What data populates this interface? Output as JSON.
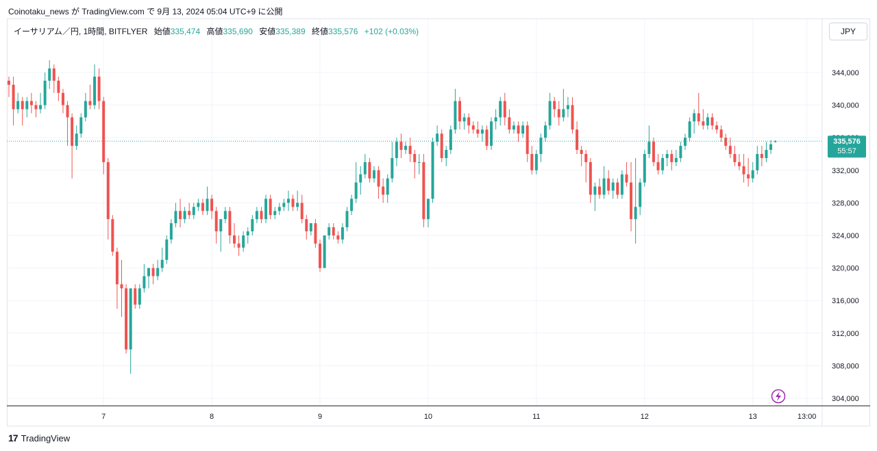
{
  "header": {
    "published_caption": "Coinotaku_news が TradingView.com で 9月 13, 2024 05:04 UTC+9 に公開"
  },
  "legend": {
    "symbol": "イーサリアム／円, 1時間, BITFLYER",
    "open_label": "始値",
    "open_value": "335,474",
    "high_label": "高値",
    "high_value": "335,690",
    "low_label": "安値",
    "low_value": "335,389",
    "close_label": "終値",
    "close_value": "335,576",
    "change": "+102 (+0.03%)"
  },
  "currency_button": "JPY",
  "price_badge": {
    "price": "335,576",
    "countdown": "55:57"
  },
  "footer": {
    "brand": "TradingView",
    "logo": "17"
  },
  "colors": {
    "up": "#26a69a",
    "down": "#ef5350",
    "grid": "#f0f3fa",
    "axis_text": "#131722",
    "badge": "#26a69a",
    "lightning": "#9c27b0"
  },
  "chart_data": {
    "type": "candlestick",
    "interval": "1時間",
    "currency": "JPY",
    "y_ticks": [
      304000,
      308000,
      312000,
      316000,
      320000,
      324000,
      328000,
      332000,
      336000,
      340000,
      344000
    ],
    "y_tick_labels": [
      "304,000",
      "308,000",
      "312,000",
      "316,000",
      "320,000",
      "324,000",
      "328,000",
      "332,000",
      "336,000",
      "340,000",
      "344,000"
    ],
    "ylim": [
      303000,
      348000
    ],
    "x_tick_labels": [
      "7",
      "8",
      "9",
      "10",
      "11",
      "12",
      "13",
      "13:00"
    ],
    "x_tick_index": [
      21,
      45,
      69,
      93,
      117,
      141,
      165,
      177
    ],
    "last_price": 335576,
    "candles": [
      [
        343000,
        343500,
        341000,
        342500
      ],
      [
        342500,
        343500,
        337500,
        339500
      ],
      [
        339500,
        341500,
        339000,
        340500
      ],
      [
        340500,
        341000,
        337500,
        339500
      ],
      [
        339500,
        341000,
        338500,
        340500
      ],
      [
        340500,
        341500,
        339000,
        340000
      ],
      [
        340000,
        340500,
        338500,
        339500
      ],
      [
        339500,
        341500,
        339000,
        340000
      ],
      [
        340000,
        344000,
        339500,
        343000
      ],
      [
        343000,
        345500,
        342000,
        344500
      ],
      [
        344500,
        345000,
        341500,
        343000
      ],
      [
        343000,
        343500,
        340500,
        341500
      ],
      [
        341500,
        342000,
        339000,
        340000
      ],
      [
        340000,
        340500,
        335000,
        338500
      ],
      [
        338500,
        339000,
        331000,
        335000
      ],
      [
        335000,
        337500,
        334500,
        336500
      ],
      [
        336500,
        339000,
        336000,
        338500
      ],
      [
        338500,
        341500,
        338000,
        340500
      ],
      [
        340500,
        342500,
        339500,
        340000
      ],
      [
        340000,
        345000,
        339500,
        343500
      ],
      [
        343500,
        344500,
        339500,
        340500
      ],
      [
        340500,
        341000,
        331500,
        333000
      ],
      [
        333000,
        333500,
        323500,
        326000
      ],
      [
        326000,
        326500,
        321500,
        322000
      ],
      [
        322000,
        322500,
        315000,
        318000
      ],
      [
        318000,
        321000,
        314000,
        317500
      ],
      [
        317500,
        318000,
        309500,
        310000
      ],
      [
        310000,
        317500,
        307000,
        317500
      ],
      [
        317500,
        318000,
        315000,
        315500
      ],
      [
        315500,
        318000,
        315000,
        317500
      ],
      [
        317500,
        320500,
        317000,
        319000
      ],
      [
        319000,
        320000,
        317500,
        320000
      ],
      [
        320000,
        320500,
        318000,
        319000
      ],
      [
        319000,
        321000,
        318500,
        320000
      ],
      [
        320000,
        322500,
        319500,
        321000
      ],
      [
        321000,
        324000,
        320500,
        323500
      ],
      [
        323500,
        326000,
        323000,
        325500
      ],
      [
        325500,
        328000,
        325000,
        327000
      ],
      [
        327000,
        328500,
        325000,
        326000
      ],
      [
        326000,
        327500,
        325500,
        327000
      ],
      [
        327000,
        328000,
        326000,
        326500
      ],
      [
        326500,
        328000,
        326000,
        327500
      ],
      [
        327500,
        328500,
        327000,
        328000
      ],
      [
        328000,
        328500,
        326500,
        327000
      ],
      [
        327000,
        330000,
        326500,
        328500
      ],
      [
        328500,
        329000,
        326000,
        327000
      ],
      [
        327000,
        327500,
        323000,
        324500
      ],
      [
        324500,
        326000,
        322000,
        326000
      ],
      [
        326000,
        327500,
        325500,
        327000
      ],
      [
        327000,
        327500,
        323000,
        324000
      ],
      [
        324000,
        325500,
        322500,
        323000
      ],
      [
        323000,
        324000,
        321500,
        322500
      ],
      [
        322500,
        324500,
        322000,
        324000
      ],
      [
        324000,
        325000,
        323000,
        324500
      ],
      [
        324500,
        326500,
        324000,
        326000
      ],
      [
        326000,
        327500,
        325500,
        327000
      ],
      [
        327000,
        327500,
        325500,
        326000
      ],
      [
        326000,
        329000,
        325500,
        328500
      ],
      [
        328500,
        329000,
        326000,
        326500
      ],
      [
        326500,
        327500,
        326000,
        327000
      ],
      [
        327000,
        328000,
        326500,
        327500
      ],
      [
        327500,
        328500,
        327000,
        328000
      ],
      [
        328000,
        329500,
        327000,
        328500
      ],
      [
        328500,
        329000,
        327000,
        327500
      ],
      [
        327500,
        329500,
        327000,
        328000
      ],
      [
        328000,
        329000,
        325500,
        326000
      ],
      [
        326000,
        326500,
        323500,
        324500
      ],
      [
        324500,
        325500,
        324000,
        325500
      ],
      [
        325500,
        326000,
        322500,
        323000
      ],
      [
        323000,
        323500,
        319500,
        320000
      ],
      [
        320000,
        324000,
        320000,
        324000
      ],
      [
        324000,
        325500,
        323500,
        325000
      ],
      [
        325000,
        325500,
        323500,
        324000
      ],
      [
        324000,
        324500,
        323000,
        323500
      ],
      [
        323500,
        325500,
        323000,
        325000
      ],
      [
        325000,
        327500,
        324500,
        327000
      ],
      [
        327000,
        329000,
        326500,
        328500
      ],
      [
        328500,
        333000,
        328000,
        330500
      ],
      [
        330500,
        332500,
        329000,
        331500
      ],
      [
        331500,
        334000,
        331000,
        333000
      ],
      [
        333000,
        333500,
        330500,
        331000
      ],
      [
        331000,
        332500,
        330500,
        332000
      ],
      [
        332000,
        332500,
        328500,
        330000
      ],
      [
        330000,
        331000,
        328000,
        329000
      ],
      [
        329000,
        331500,
        328000,
        331000
      ],
      [
        331000,
        335500,
        330500,
        333500
      ],
      [
        333500,
        336000,
        332500,
        335500
      ],
      [
        335500,
        336500,
        333500,
        334500
      ],
      [
        334500,
        335500,
        334000,
        335000
      ],
      [
        335000,
        336000,
        333000,
        334000
      ],
      [
        334000,
        334500,
        331000,
        333000
      ],
      [
        333000,
        334000,
        331500,
        333000
      ],
      [
        333000,
        334000,
        325000,
        326000
      ],
      [
        326000,
        328500,
        325000,
        328500
      ],
      [
        328500,
        336000,
        328000,
        335500
      ],
      [
        335500,
        337500,
        335000,
        336500
      ],
      [
        336500,
        337000,
        333000,
        333500
      ],
      [
        333500,
        335000,
        332500,
        334500
      ],
      [
        334500,
        337500,
        334000,
        337000
      ],
      [
        337000,
        342000,
        336500,
        340500
      ],
      [
        340500,
        341000,
        337000,
        338000
      ],
      [
        338000,
        339000,
        337000,
        338500
      ],
      [
        338500,
        339000,
        336500,
        337500
      ],
      [
        337500,
        338000,
        336500,
        337000
      ],
      [
        337000,
        338000,
        336000,
        336500
      ],
      [
        336500,
        337500,
        335500,
        337000
      ],
      [
        337000,
        337500,
        334500,
        335000
      ],
      [
        335000,
        338500,
        334500,
        338000
      ],
      [
        338000,
        339500,
        337000,
        338500
      ],
      [
        338500,
        341000,
        337500,
        340500
      ],
      [
        340500,
        341500,
        337500,
        338500
      ],
      [
        338500,
        339500,
        336500,
        337000
      ],
      [
        337000,
        338000,
        336500,
        337500
      ],
      [
        337500,
        338000,
        335500,
        336500
      ],
      [
        336500,
        338000,
        336000,
        337500
      ],
      [
        337500,
        338000,
        333000,
        334000
      ],
      [
        334000,
        335000,
        331500,
        332000
      ],
      [
        332000,
        334500,
        331500,
        334000
      ],
      [
        334000,
        336500,
        333000,
        336000
      ],
      [
        336000,
        338000,
        335500,
        337500
      ],
      [
        337500,
        341500,
        337000,
        340500
      ],
      [
        340500,
        341000,
        338500,
        339500
      ],
      [
        339500,
        340500,
        337500,
        338500
      ],
      [
        338500,
        342000,
        338000,
        339500
      ],
      [
        339500,
        341000,
        338500,
        340000
      ],
      [
        340000,
        341000,
        336500,
        337000
      ],
      [
        337000,
        338000,
        334000,
        334500
      ],
      [
        334500,
        335000,
        332500,
        334000
      ],
      [
        334000,
        334500,
        330500,
        333000
      ],
      [
        333000,
        333500,
        328000,
        329000
      ],
      [
        329000,
        330500,
        327000,
        330000
      ],
      [
        330000,
        331000,
        328500,
        329000
      ],
      [
        329000,
        332500,
        328500,
        331000
      ],
      [
        331000,
        332000,
        329000,
        329500
      ],
      [
        329500,
        331000,
        328500,
        330500
      ],
      [
        330500,
        331000,
        328500,
        329000
      ],
      [
        329000,
        332000,
        328500,
        331500
      ],
      [
        331500,
        333000,
        330000,
        330500
      ],
      [
        330500,
        333000,
        324500,
        326000
      ],
      [
        326000,
        333500,
        323000,
        327500
      ],
      [
        327500,
        331000,
        326500,
        330500
      ],
      [
        330500,
        334500,
        330000,
        334000
      ],
      [
        334000,
        337500,
        333500,
        335500
      ],
      [
        335500,
        336000,
        332500,
        333000
      ],
      [
        333000,
        334000,
        331500,
        332000
      ],
      [
        332000,
        334000,
        331500,
        333500
      ],
      [
        333500,
        334500,
        332500,
        334000
      ],
      [
        334000,
        334500,
        332000,
        333000
      ],
      [
        333000,
        334500,
        332500,
        333500
      ],
      [
        333500,
        335500,
        333000,
        335000
      ],
      [
        335000,
        336500,
        334500,
        336000
      ],
      [
        336000,
        338500,
        335500,
        338000
      ],
      [
        338000,
        339500,
        336500,
        339000
      ],
      [
        339000,
        341500,
        337500,
        338000
      ],
      [
        338000,
        339500,
        337000,
        337500
      ],
      [
        337500,
        339000,
        337000,
        338500
      ],
      [
        338500,
        339000,
        337000,
        337500
      ],
      [
        337500,
        338000,
        336500,
        337000
      ],
      [
        337000,
        337500,
        335500,
        336000
      ],
      [
        336000,
        336500,
        334500,
        335000
      ],
      [
        335000,
        336000,
        333500,
        334000
      ],
      [
        334000,
        335000,
        332500,
        333000
      ],
      [
        333000,
        334000,
        332000,
        332500
      ],
      [
        332500,
        334000,
        330500,
        331500
      ],
      [
        331500,
        333500,
        330000,
        331000
      ],
      [
        331000,
        333000,
        330500,
        332000
      ],
      [
        332000,
        335000,
        331500,
        334000
      ],
      [
        334000,
        335000,
        332500,
        333500
      ],
      [
        333500,
        335500,
        333000,
        334500
      ],
      [
        334500,
        335700,
        334000,
        335200
      ],
      [
        335474,
        335690,
        335389,
        335576
      ]
    ]
  }
}
